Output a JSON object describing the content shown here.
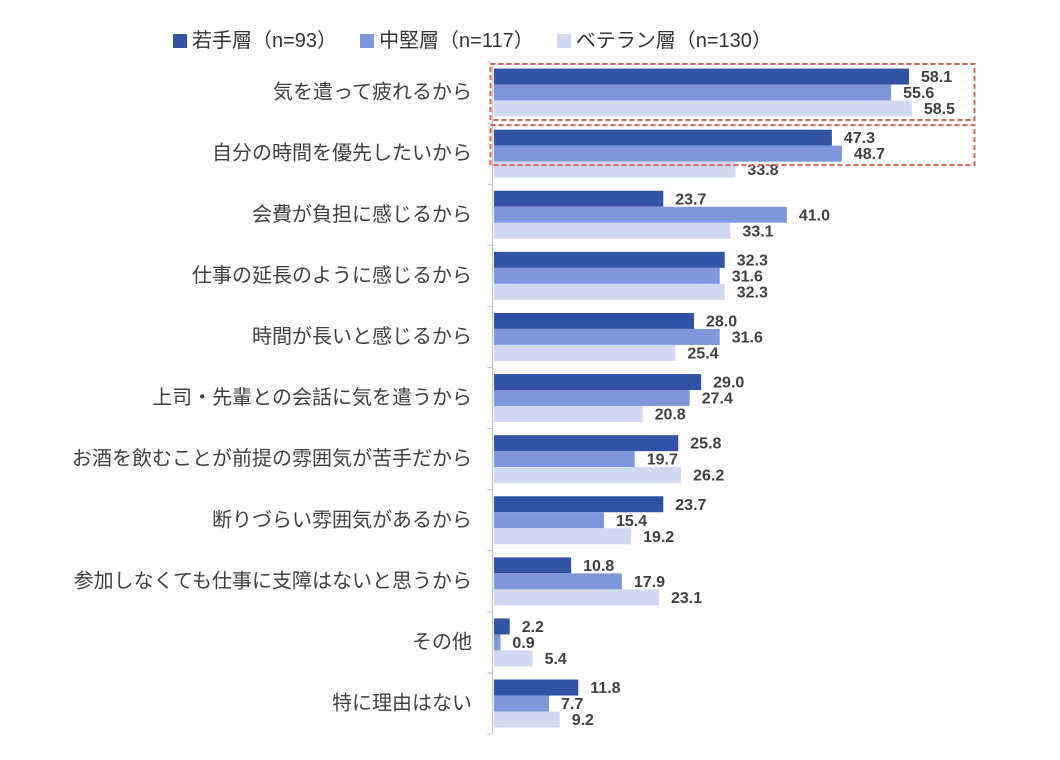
{
  "chart_data": {
    "type": "bar",
    "orientation": "horizontal",
    "legend": "top",
    "grid": false,
    "xlim": [
      0,
      70
    ],
    "categories": [
      "気を遣って疲れるから",
      "自分の時間を優先したいから",
      "会費が負担に感じるから",
      "仕事の延長のように感じるから",
      "時間が長いと感じるから",
      "上司・先輩との会話に気を遣うから",
      "お酒を飲むことが前提の雰囲気が苦手だから",
      "断りづらい雰囲気があるから",
      "参加しなくても仕事に支障はないと思うから",
      "その他",
      "特に理由はない"
    ],
    "series": [
      {
        "name": "若手層（n=93）",
        "color": "#3153A3",
        "values": [
          58.1,
          47.3,
          23.7,
          32.3,
          28.0,
          29.0,
          25.8,
          23.7,
          10.8,
          2.2,
          11.8
        ]
      },
      {
        "name": "中堅層（n=117）",
        "color": "#7D97DA",
        "values": [
          55.6,
          48.7,
          41.0,
          31.6,
          31.6,
          27.4,
          19.7,
          15.4,
          17.9,
          0.9,
          7.7
        ]
      },
      {
        "name": "ベテラン層（n=130）",
        "color": "#D0D9F1",
        "values": [
          58.5,
          33.8,
          33.1,
          32.3,
          25.4,
          20.8,
          26.2,
          19.2,
          23.1,
          5.4,
          9.2
        ]
      }
    ],
    "highlights": [
      {
        "category_index": 0,
        "series_indices": [
          0,
          1,
          2
        ]
      },
      {
        "category_index": 1,
        "series_indices": [
          0,
          1
        ]
      }
    ],
    "highlight_color": "#D9605C"
  }
}
